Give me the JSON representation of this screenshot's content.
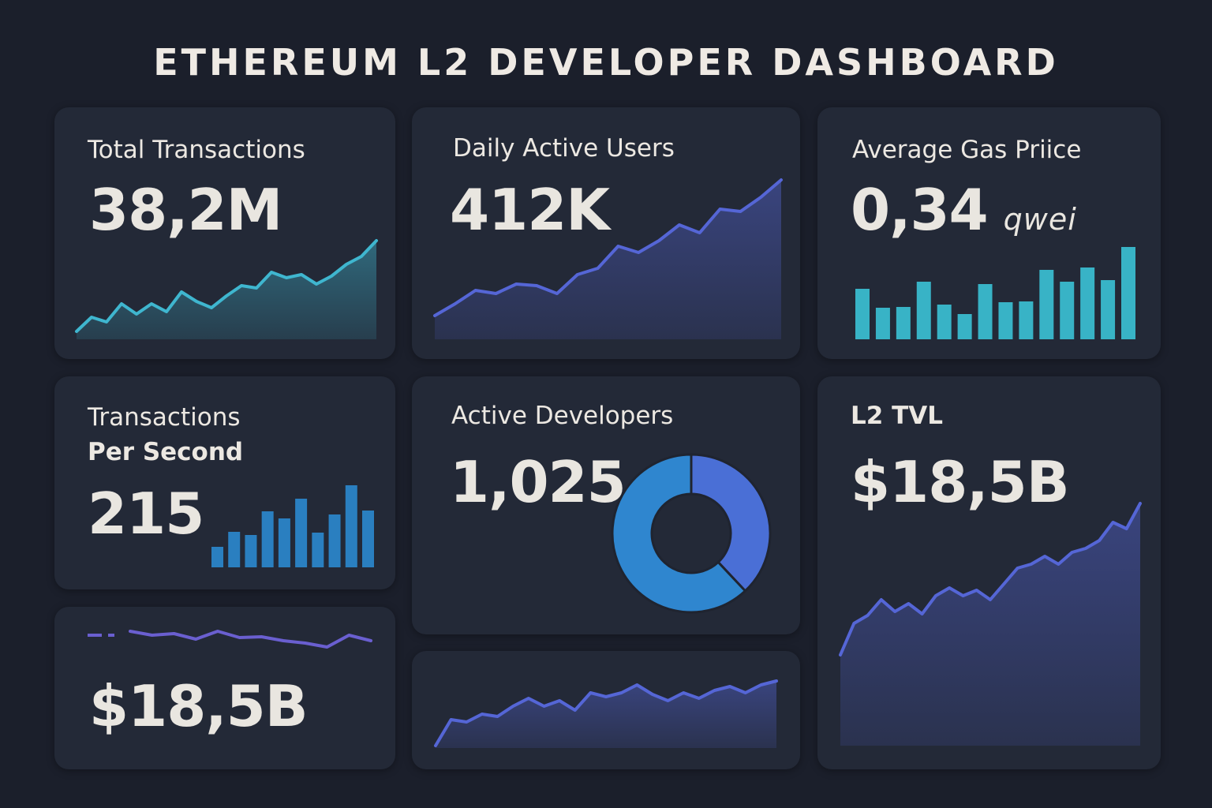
{
  "title": "ETHEREUM L2 DEVELOPER DASHBOARD",
  "cards": {
    "total_transactions": {
      "label": "Total Transactions",
      "value": "38,2M"
    },
    "daily_active_users": {
      "label": "Daily Active Users",
      "value": "412K"
    },
    "avg_gas_price": {
      "label": "Average Gas Priice",
      "value": "0,34",
      "unit": "qwei"
    },
    "tps": {
      "label_line1": "Transactions",
      "label_line2": "Per Second",
      "value": "215"
    },
    "active_developers": {
      "label": "Active Developers",
      "value": "1,025"
    },
    "l2_tvl": {
      "label": "L2 TVL",
      "value": "$18,5B"
    },
    "tvl_secondary": {
      "value": "$18,5B"
    }
  },
  "colors": {
    "cyan": "#3fb6cf",
    "teal_bar": "#38b3c6",
    "blue_bar": "#2a7fc0",
    "indigo": "#5566d6",
    "donut_a": "#2f86cf",
    "donut_b": "#4a6fd6"
  },
  "chart_data": [
    {
      "type": "area",
      "card": "total_transactions",
      "values": [
        10,
        28,
        22,
        45,
        32,
        45,
        35,
        60,
        48,
        40,
        55,
        68,
        65,
        85,
        78,
        82,
        70,
        80,
        95,
        105,
        125
      ],
      "color": "#3fb6cf"
    },
    {
      "type": "area",
      "card": "daily_active_users",
      "values": [
        30,
        45,
        62,
        58,
        70,
        68,
        58,
        82,
        90,
        118,
        110,
        125,
        145,
        135,
        165,
        162,
        180,
        202
      ],
      "color": "#5566d6"
    },
    {
      "type": "bar",
      "card": "avg_gas_price",
      "values": [
        64,
        40,
        41,
        73,
        44,
        32,
        70,
        47,
        48,
        88,
        73,
        91,
        75,
        117
      ],
      "color": "#38b3c6"
    },
    {
      "type": "bar",
      "card": "tps",
      "values": [
        26,
        45,
        41,
        71,
        62,
        87,
        44,
        67,
        104,
        72
      ],
      "color": "#2a7fc0"
    },
    {
      "type": "pie",
      "card": "active_developers",
      "values": [
        38,
        62
      ],
      "donut": true
    },
    {
      "type": "area",
      "card": "l2_tvl",
      "values": [
        115,
        155,
        165,
        185,
        170,
        180,
        167,
        190,
        200,
        190,
        197,
        185,
        205,
        225,
        230,
        240,
        230,
        245,
        250,
        260,
        283,
        275,
        307
      ],
      "color": "#5566d6"
    },
    {
      "type": "line",
      "card": "tvl_secondary",
      "values": [
        25,
        20,
        22,
        15,
        25,
        17,
        18,
        13,
        10,
        5,
        20,
        13
      ],
      "color": "#6a5fd0"
    },
    {
      "type": "area",
      "card": "bottom_middle",
      "values": [
        3,
        36,
        33,
        43,
        40,
        53,
        63,
        53,
        60,
        48,
        70,
        65,
        70,
        80,
        68,
        60,
        70,
        63,
        73,
        78,
        70,
        80,
        85
      ],
      "color": "#5566d6"
    }
  ]
}
